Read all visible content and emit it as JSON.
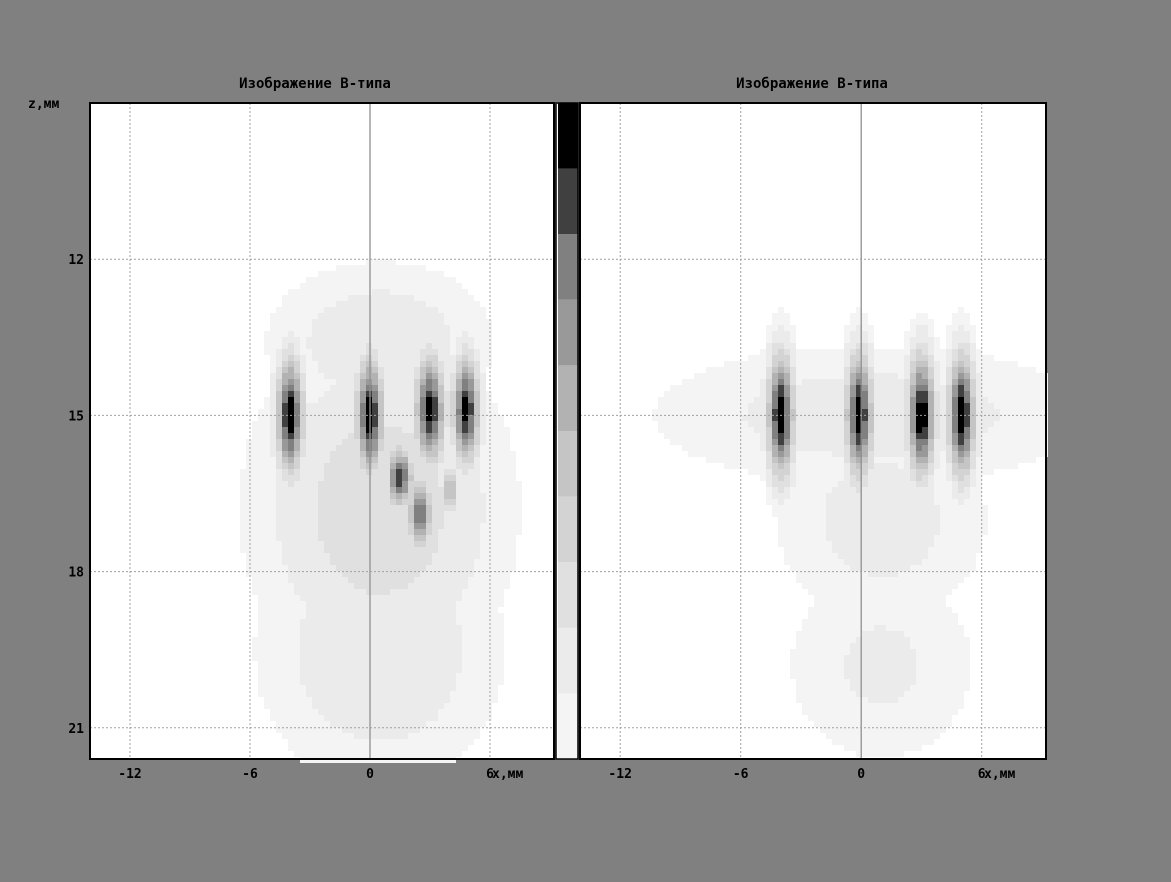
{
  "background_color": "#808080",
  "chart_data": [
    {
      "type": "heatmap",
      "title": "Изображение B-типа",
      "xlabel": "x,мм",
      "ylabel": "z,мм",
      "xlim": [
        -14,
        9.2
      ],
      "ylim": [
        9,
        21.6
      ],
      "xticks": [
        -12,
        -6,
        0,
        6
      ],
      "yticks": [
        12,
        15,
        18,
        21
      ],
      "grid": true,
      "blobs": [
        {
          "x": -4,
          "z": 15,
          "wx": 0.45,
          "wz": 0.75,
          "v": 1.0
        },
        {
          "x": 0,
          "z": 15,
          "wx": 0.45,
          "wz": 0.75,
          "v": 1.0
        },
        {
          "x": 3,
          "z": 14.9,
          "wx": 0.5,
          "wz": 0.7,
          "v": 0.95
        },
        {
          "x": 4.8,
          "z": 14.9,
          "wx": 0.45,
          "wz": 0.7,
          "v": 0.95
        },
        {
          "x": 1.5,
          "z": 16.2,
          "wx": 0.45,
          "wz": 0.4,
          "v": 0.85
        },
        {
          "x": 2.5,
          "z": 16.9,
          "wx": 0.4,
          "wz": 0.45,
          "v": 0.8
        },
        {
          "x": 4.0,
          "z": 16.4,
          "wx": 0.25,
          "wz": 0.3,
          "v": 0.55
        },
        {
          "x": 0.5,
          "z": 16.8,
          "wx": 3.5,
          "wz": 1.8,
          "v": 0.3
        },
        {
          "x": 0.5,
          "z": 19.5,
          "wx": 3.5,
          "wz": 1.5,
          "v": 0.2
        },
        {
          "x": 0.5,
          "z": 13.6,
          "wx": 3.3,
          "wz": 0.9,
          "v": 0.18
        }
      ]
    },
    {
      "type": "heatmap",
      "title": "Изображение B-типа",
      "xlabel": "x,мм",
      "xlim": [
        -14,
        9.2
      ],
      "ylim": [
        9,
        21.6
      ],
      "xticks": [
        -12,
        -6,
        0,
        6
      ],
      "yticks": [
        12,
        15,
        18,
        21
      ],
      "grid": true,
      "blobs": [
        {
          "x": -4,
          "z": 15,
          "wx": 0.45,
          "wz": 0.8,
          "v": 1.0
        },
        {
          "x": -0.1,
          "z": 15,
          "wx": 0.45,
          "wz": 0.8,
          "v": 1.0
        },
        {
          "x": 3,
          "z": 15,
          "wx": 0.45,
          "wz": 0.8,
          "v": 1.0
        },
        {
          "x": 5,
          "z": 15,
          "wx": 0.45,
          "wz": 0.8,
          "v": 1.0
        },
        {
          "x": 0.5,
          "z": 15,
          "wx": 6.5,
          "wz": 0.8,
          "v": 0.16
        },
        {
          "x": 1.0,
          "z": 17.0,
          "wx": 3.2,
          "wz": 1.2,
          "v": 0.15
        },
        {
          "x": 1.0,
          "z": 19.8,
          "wx": 3.0,
          "wz": 1.2,
          "v": 0.12
        }
      ]
    }
  ],
  "colorbar": {
    "levels": 10,
    "colors": [
      "#f4f4f4",
      "#ebebeb",
      "#e0e0e0",
      "#d3d3d3",
      "#c5c5c5",
      "#b2b2b2",
      "#999999",
      "#808080",
      "#404040",
      "#000000"
    ]
  }
}
